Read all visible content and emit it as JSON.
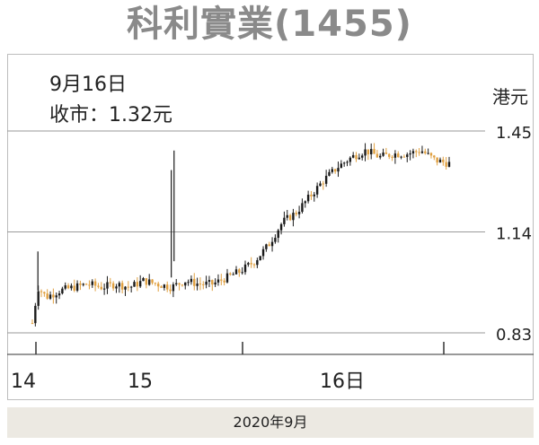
{
  "title": "科利實業(1455)",
  "info": {
    "date": "9月16日",
    "close_label": "收市：",
    "close_value": "1.32元"
  },
  "unit": "港元",
  "footer": "2020年9月",
  "colors": {
    "up": "#1a1a1a",
    "down": "#e0a040",
    "grid": "#9a9a9a",
    "title": "#8a8a8a",
    "footer_bg": "#ece9e2"
  },
  "chart_data": {
    "type": "candlestick",
    "title": "科利實業(1455)",
    "ylabel": "港元",
    "ylim": [
      0.83,
      1.45
    ],
    "y_ticks": [
      1.45,
      1.14,
      0.83
    ],
    "y_tick_labels": [
      "1.45",
      "1.14",
      "0.83"
    ],
    "x_ticks": [
      {
        "label": "14",
        "t": 0.055
      },
      {
        "label": "15",
        "t": 0.5
      },
      {
        "label": "16日",
        "t": 1.0
      }
    ],
    "x_label": "2020年9月",
    "grid": "horizontal",
    "approx_series": {
      "note_free_values": true,
      "x": [
        0.0,
        0.02,
        0.05,
        0.1,
        0.15,
        0.2,
        0.25,
        0.3,
        0.35,
        0.4,
        0.45,
        0.5,
        0.55,
        0.6,
        0.65,
        0.7,
        0.75,
        0.8,
        0.85,
        0.9,
        0.95,
        1.0,
        1.05,
        1.1,
        1.15,
        1.2,
        1.25,
        1.3,
        1.35,
        1.4,
        1.45,
        1.5
      ],
      "close": [
        0.86,
        0.97,
        0.94,
        0.96,
        0.97,
        0.98,
        0.97,
        0.98,
        0.97,
        0.99,
        0.98,
        0.97,
        0.99,
        0.98,
        0.98,
        1.0,
        1.02,
        1.05,
        1.1,
        1.17,
        1.2,
        1.25,
        1.3,
        1.34,
        1.37,
        1.39,
        1.37,
        1.38,
        1.38,
        1.39,
        1.36,
        1.35
      ]
    },
    "last_close": 1.32
  }
}
